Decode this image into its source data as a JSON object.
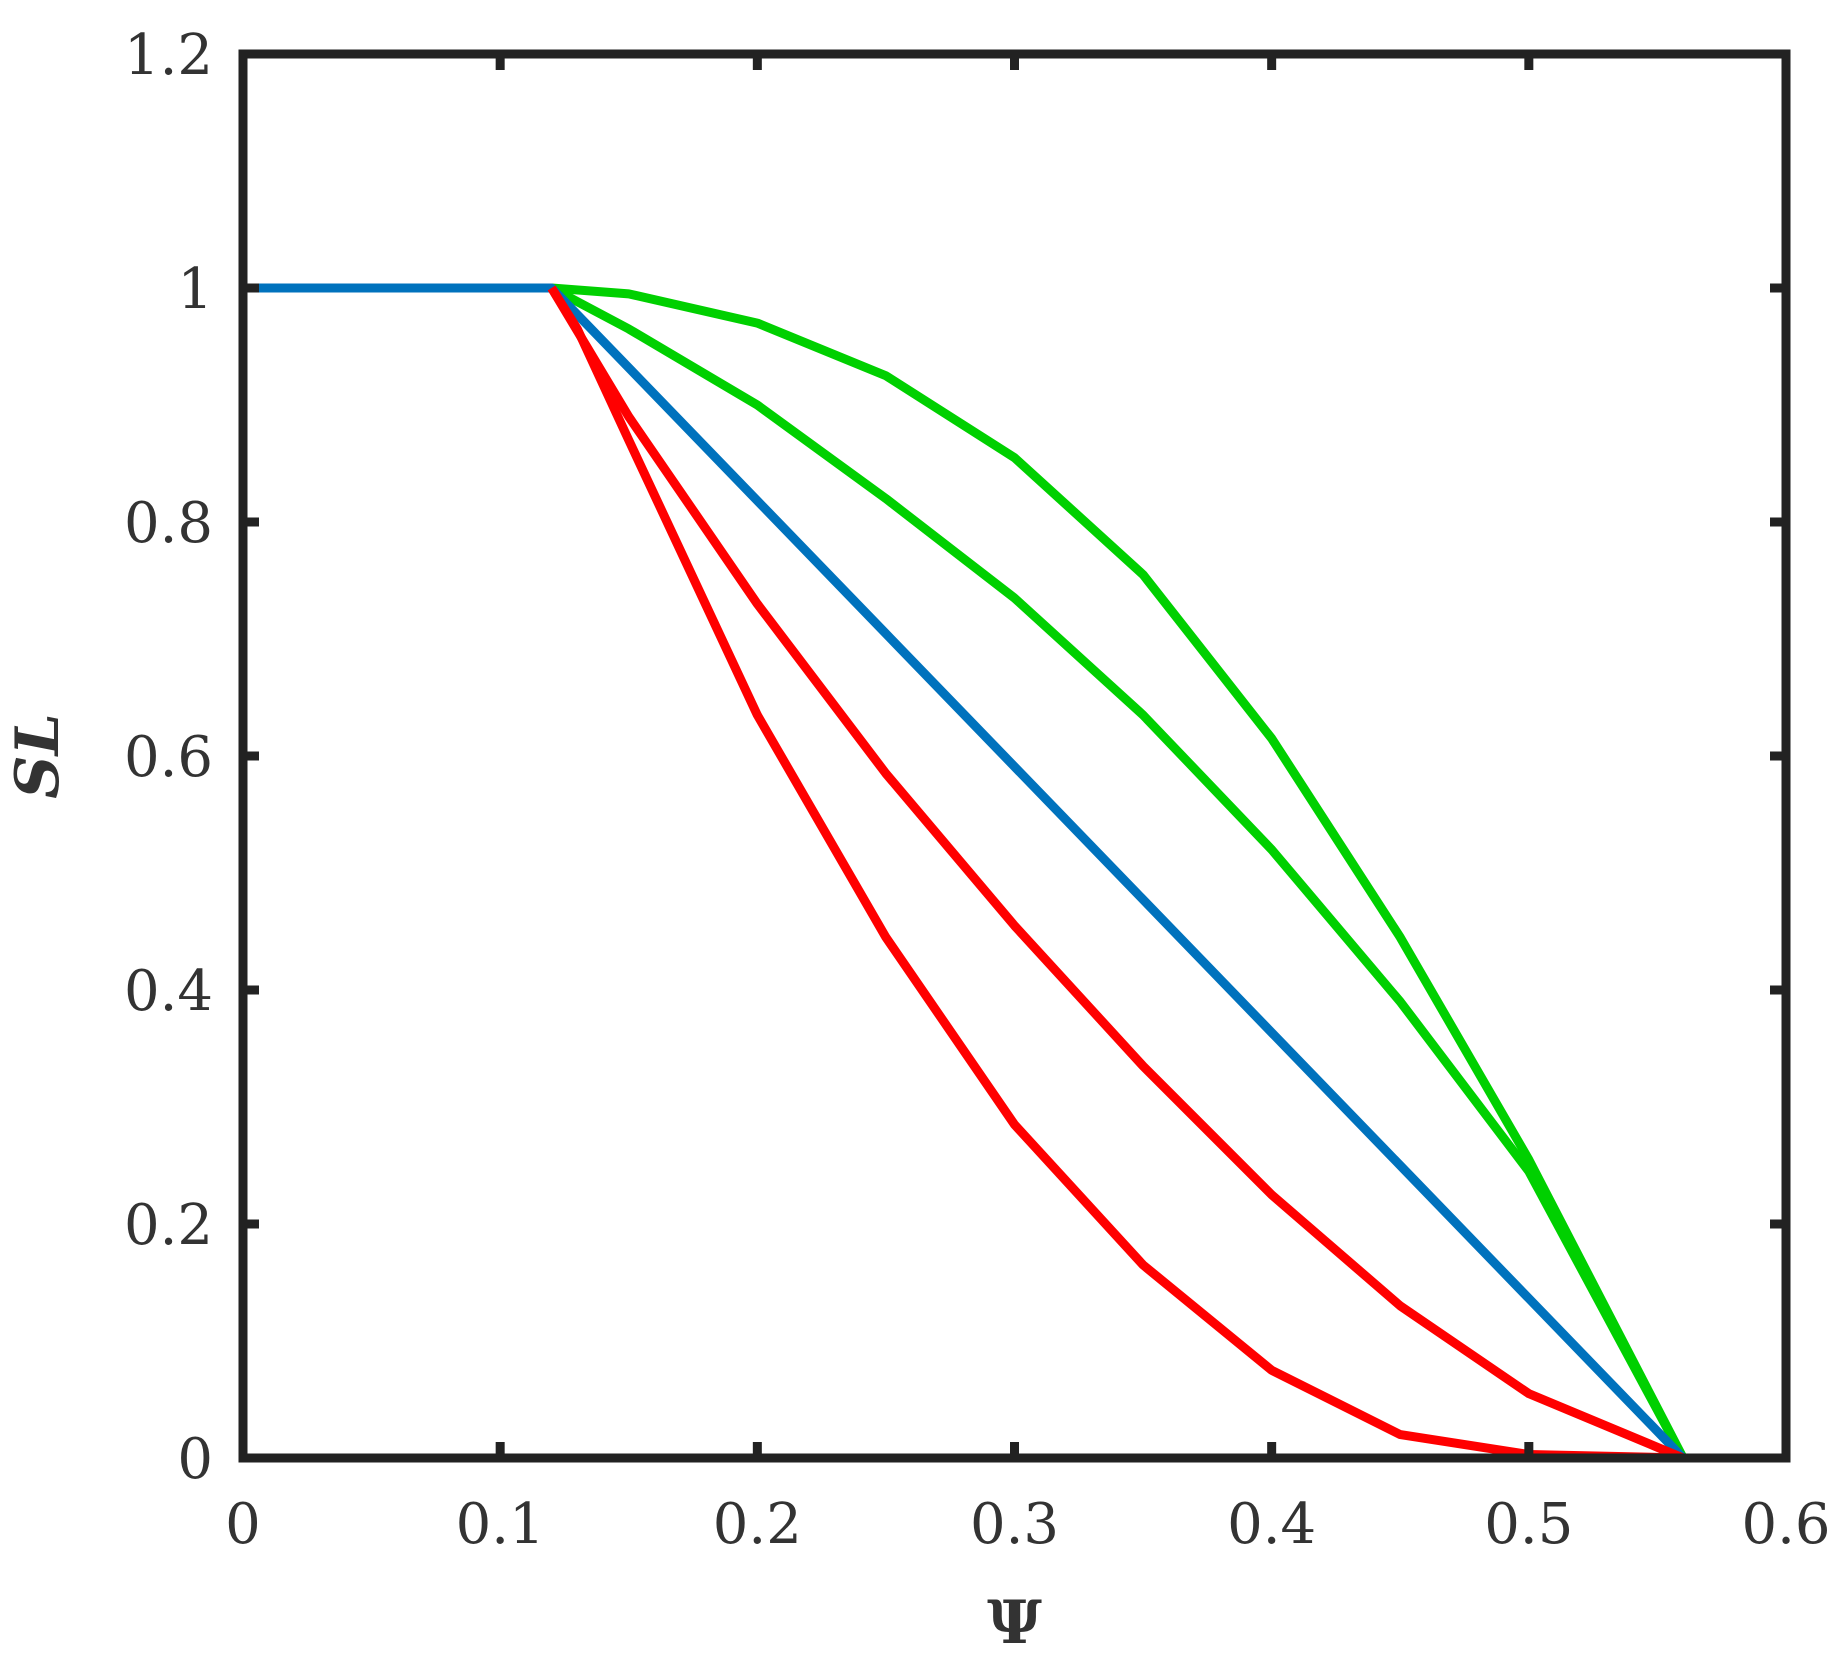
{
  "chart_data": {
    "type": "line",
    "title": "",
    "xlabel": "Ψ",
    "ylabel": "SL",
    "xlim": [
      0,
      0.6
    ],
    "ylim": [
      0,
      1.2
    ],
    "xticks": [
      "0",
      "0.1",
      "0.2",
      "0.3",
      "0.4",
      "0.5",
      "0.6"
    ],
    "yticks": [
      "0",
      "0.2",
      "0.4",
      "0.6",
      "0.8",
      "1",
      "1.2"
    ],
    "grid": false,
    "legend": "none",
    "series": [
      {
        "color": "#00d000",
        "x": [
          0.12,
          0.15,
          0.2,
          0.25,
          0.3,
          0.35,
          0.4,
          0.45,
          0.5,
          0.56
        ],
        "y": [
          1.0,
          0.995,
          0.97,
          0.925,
          0.855,
          0.755,
          0.615,
          0.445,
          0.255,
          0.0
        ]
      },
      {
        "color": "#00d000",
        "x": [
          0.12,
          0.15,
          0.2,
          0.25,
          0.3,
          0.35,
          0.4,
          0.45,
          0.5,
          0.56
        ],
        "y": [
          1.0,
          0.965,
          0.9,
          0.82,
          0.735,
          0.635,
          0.52,
          0.39,
          0.245,
          0.0
        ]
      },
      {
        "color": "#0072bd",
        "x": [
          0.0,
          0.12,
          0.56
        ],
        "y": [
          1.0,
          1.0,
          0.0
        ]
      },
      {
        "color": "#ff0000",
        "x": [
          0.12,
          0.15,
          0.2,
          0.25,
          0.3,
          0.35,
          0.4,
          0.45,
          0.5,
          0.56
        ],
        "y": [
          1.0,
          0.89,
          0.73,
          0.585,
          0.455,
          0.335,
          0.225,
          0.13,
          0.055,
          0.0
        ]
      },
      {
        "color": "#ff0000",
        "x": [
          0.12,
          0.13,
          0.15,
          0.2,
          0.25,
          0.3,
          0.35,
          0.4,
          0.45,
          0.5,
          0.56
        ],
        "y": [
          1.0,
          0.965,
          0.87,
          0.635,
          0.445,
          0.285,
          0.165,
          0.075,
          0.02,
          0.003,
          0.0
        ]
      }
    ]
  }
}
